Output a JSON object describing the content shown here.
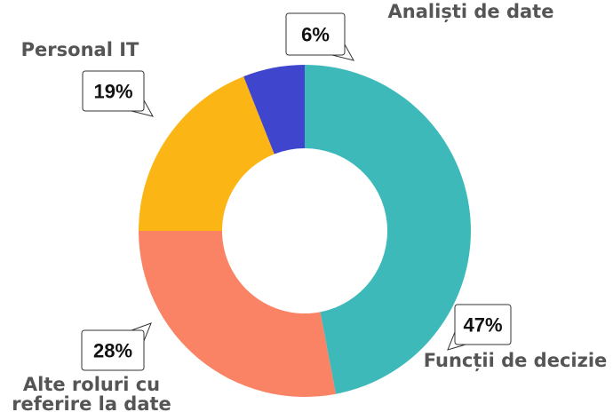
{
  "chart_data": {
    "type": "donut",
    "categories": [
      "Funcții de decizie",
      "Alte roluri cu referire la date",
      "Personal IT",
      "Analiști de date"
    ],
    "values": [
      47,
      28,
      19,
      6
    ],
    "value_labels": [
      "47%",
      "28%",
      "19%",
      "6%"
    ],
    "colors": [
      "#3db9b9",
      "#fa8366",
      "#fbb615",
      "#3f45cc"
    ]
  }
}
